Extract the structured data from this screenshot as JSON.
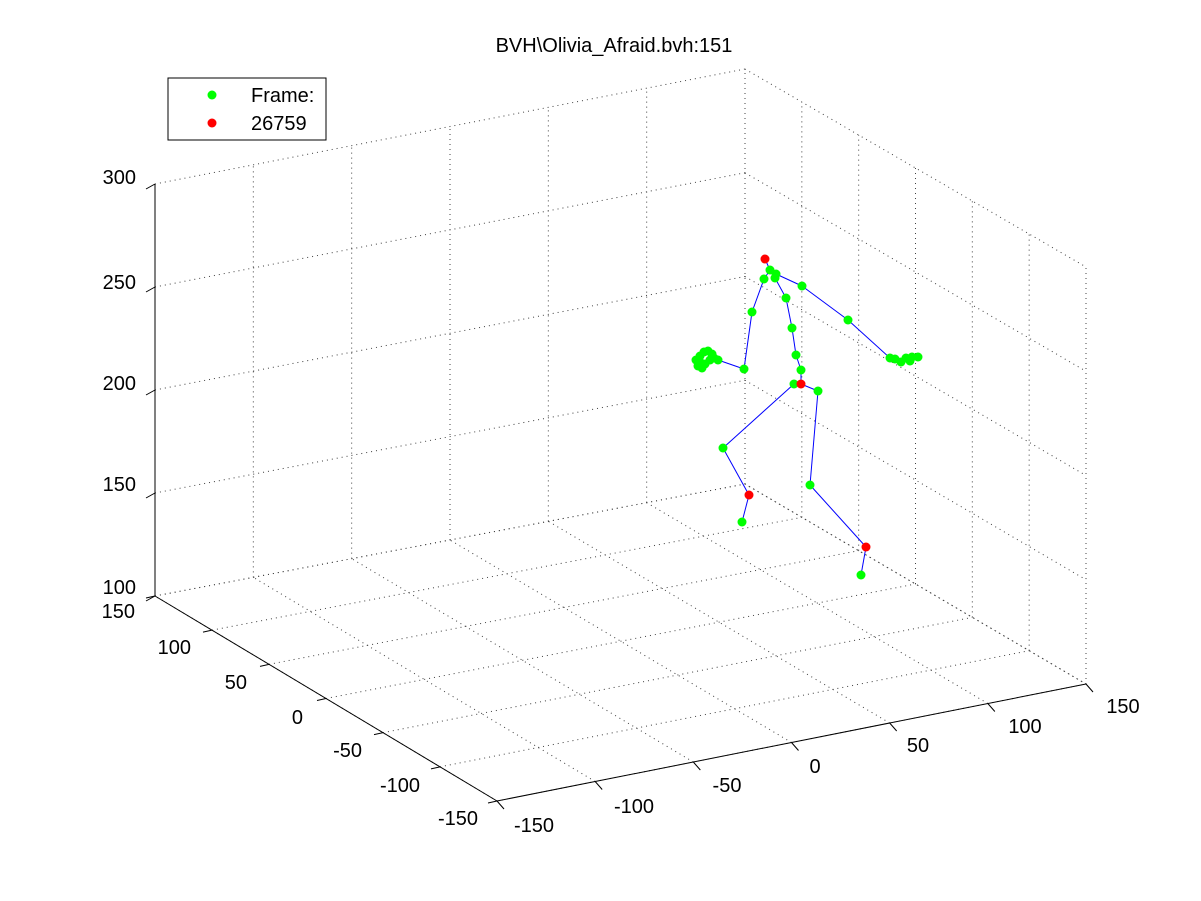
{
  "chart_data": {
    "type": "scatter",
    "title": "BVH\\Olivia_Afraid.bvh:151",
    "legend": {
      "placement": "top-left",
      "entries": [
        {
          "label": "Frame:",
          "color": "#00ff00"
        },
        {
          "label": "26759",
          "color": "#ff0000"
        }
      ]
    },
    "colors": {
      "joint": "#00ff00",
      "end_site": "#ff0000",
      "bone": "#0000ff",
      "background": "#ffffff"
    },
    "grid": true,
    "axes": {
      "x": {
        "ticks": [
          "-150",
          "-100",
          "-50",
          "0",
          "50",
          "100",
          "150"
        ]
      },
      "y": {
        "ticks": [
          "-150",
          "-100",
          "-50",
          "0",
          "50",
          "100",
          "150"
        ]
      },
      "z": {
        "ticks": [
          "100",
          "150",
          "200",
          "250",
          "300"
        ]
      }
    },
    "series": [
      {
        "name": "Frame:",
        "values": []
      },
      {
        "name": "26759",
        "values": []
      }
    ]
  }
}
